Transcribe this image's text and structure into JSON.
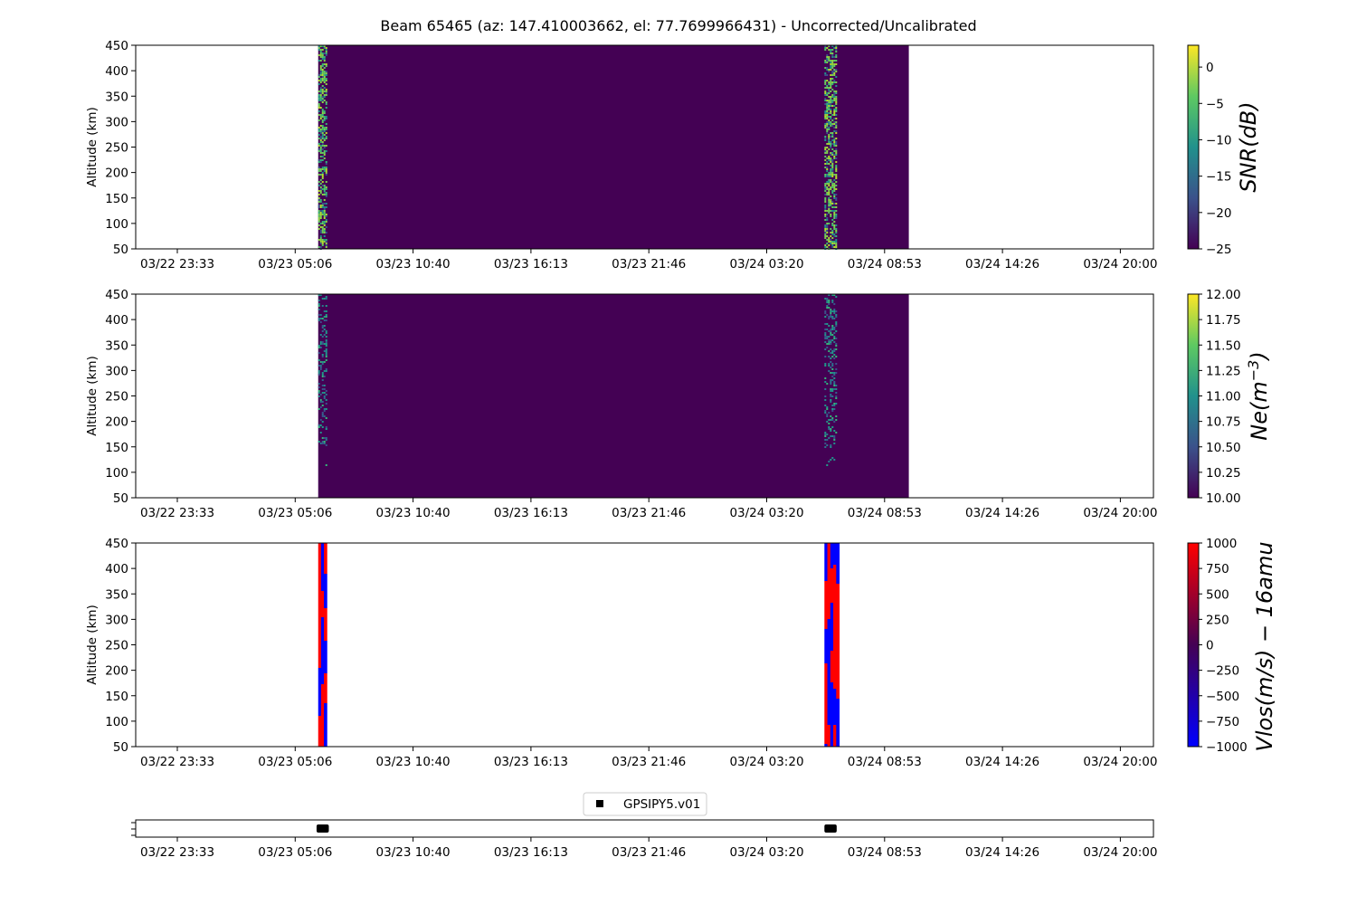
{
  "title": "Beam 65465 (az: 147.410003662, el: 77.7699966431) - Uncorrected/Uncalibrated",
  "colors": {
    "viridis_low": "#440154",
    "viridis_high": "#fde725",
    "vel_low": "#0000ff",
    "vel_high": "#ff0000",
    "marker": "#000000"
  },
  "chart_data": [
    {
      "name": "snr",
      "type": "heatmap",
      "ylabel": "Altitude (km)",
      "ylim": [
        50,
        450
      ],
      "yticks": [
        "450",
        "400",
        "350",
        "300",
        "250",
        "200",
        "150",
        "100",
        "50"
      ],
      "xlim_hours": [
        -2,
        47.8
      ],
      "xticks": [
        "03/22 23:33",
        "03/23 05:06",
        "03/23 10:40",
        "03/23 16:13",
        "03/23 21:46",
        "03/24 03:20",
        "03/24 08:53",
        "03/24 14:26",
        "03/24 20:00"
      ],
      "data_extent_hours": [
        6.93,
        35.83
      ],
      "active_bursts": [
        {
          "start": 6.93,
          "end": 7.3
        },
        {
          "start": 31.7,
          "end": 32.3
        }
      ],
      "colormap": "viridis",
      "colorbar": {
        "label": "SNR(dB)",
        "range": [
          -25,
          3
        ],
        "ticks": [
          "0",
          "−5",
          "−10",
          "−15",
          "−20",
          "−25"
        ]
      }
    },
    {
      "name": "ne",
      "type": "heatmap",
      "ylabel": "Altitude (km)",
      "ylim": [
        50,
        450
      ],
      "yticks": [
        "450",
        "400",
        "350",
        "300",
        "250",
        "200",
        "150",
        "100",
        "50"
      ],
      "xlim_hours": [
        -2,
        47.8
      ],
      "xticks": [
        "03/22 23:33",
        "03/23 05:06",
        "03/23 10:40",
        "03/23 16:13",
        "03/23 21:46",
        "03/24 03:20",
        "03/24 08:53",
        "03/24 14:26",
        "03/24 20:00"
      ],
      "data_extent_hours": [
        6.93,
        35.83
      ],
      "active_bursts": [
        {
          "start": 6.93,
          "end": 7.3
        },
        {
          "start": 31.7,
          "end": 32.3
        }
      ],
      "colormap": "viridis",
      "colorbar": {
        "label": "Ne(m",
        "label_exponent": "−3",
        "label_close": ")",
        "range": [
          10,
          12
        ],
        "ticks": [
          "12.00",
          "11.75",
          "11.50",
          "11.25",
          "11.00",
          "10.75",
          "10.50",
          "10.25",
          "10.00"
        ]
      }
    },
    {
      "name": "vlos",
      "type": "heatmap",
      "ylabel": "Altitude (km)",
      "ylim": [
        50,
        450
      ],
      "yticks": [
        "450",
        "400",
        "350",
        "300",
        "250",
        "200",
        "150",
        "100",
        "50"
      ],
      "xlim_hours": [
        -2,
        47.8
      ],
      "xticks": [
        "03/22 23:33",
        "03/23 05:06",
        "03/23 10:40",
        "03/23 16:13",
        "03/23 21:46",
        "03/24 03:20",
        "03/24 08:53",
        "03/24 14:26",
        "03/24 20:00"
      ],
      "active_bursts": [
        {
          "start": 6.93,
          "end": 7.35
        },
        {
          "start": 31.7,
          "end": 32.42
        }
      ],
      "colormap": "bwr",
      "colorbar": {
        "label": "Vlos(m/s) − 16amu",
        "range": [
          -1000,
          1000
        ],
        "ticks": [
          "1000",
          "750",
          "500",
          "250",
          "0",
          "−250",
          "−500",
          "−750",
          "−1000"
        ]
      }
    },
    {
      "name": "coverage",
      "type": "scatter",
      "xlim_hours": [
        -2,
        47.8
      ],
      "xticks": [
        "03/22 23:33",
        "03/23 05:06",
        "03/23 10:40",
        "03/23 16:13",
        "03/23 21:46",
        "03/24 03:20",
        "03/24 08:53",
        "03/24 14:26",
        "03/24 20:00"
      ],
      "series": [
        {
          "name": "GPSIPY5.v01",
          "segments": [
            [
              6.85,
              7.45
            ],
            [
              31.7,
              32.3
            ]
          ]
        }
      ]
    }
  ]
}
